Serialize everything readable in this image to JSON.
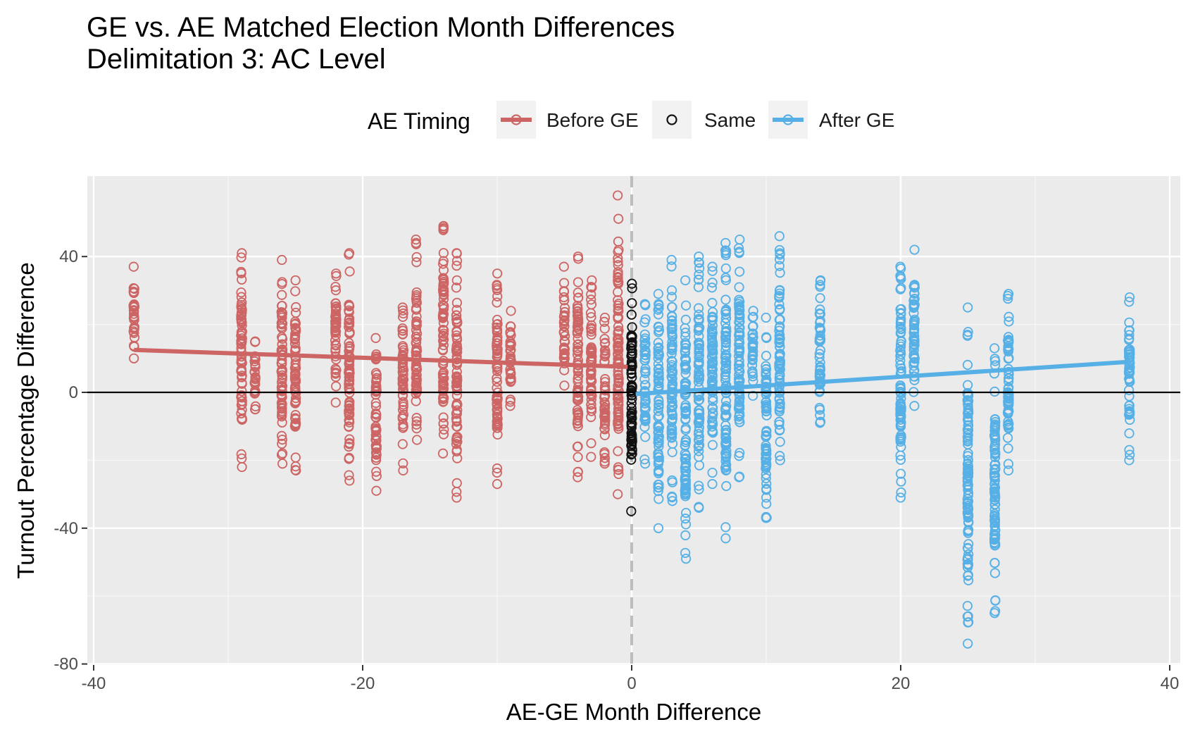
{
  "chart_data": {
    "type": "scatter",
    "title": "GE vs. AE Matched Election Month Differences",
    "subtitle": "Delimitation 3: AC Level",
    "xlabel": "AE-GE Month Difference",
    "ylabel": "Turnout Percentage Difference",
    "xlim": [
      -40,
      40
    ],
    "ylim": [
      -80,
      60
    ],
    "x_ticks": [
      -40,
      -20,
      0,
      20,
      40
    ],
    "x_tick_labels": [
      "-40",
      "-20",
      "0",
      "20",
      "40"
    ],
    "y_ticks": [
      -80,
      -40,
      0,
      40
    ],
    "y_tick_labels": [
      "-80",
      "-40",
      "0",
      "40"
    ],
    "grid": true,
    "legend": {
      "title": "AE Timing",
      "position": "top",
      "entries": [
        "Before GE",
        "Same",
        "After GE"
      ]
    },
    "colors": {
      "before": "#cd6564",
      "same": "#111111",
      "after": "#56b0e6",
      "panel": "#ebebeb",
      "grid": "#ffffff",
      "zero_line": "#000000",
      "vline": "#bdbdbd"
    },
    "reference_lines": {
      "horizontal_y": 0,
      "vertical_x_dashed": 0
    },
    "series": [
      {
        "name": "Before GE",
        "marker": "open-circle",
        "columns": [
          {
            "x": -37,
            "min": 10,
            "max": 37
          },
          {
            "x": -29,
            "min": -22,
            "max": 41
          },
          {
            "x": -28,
            "min": -5,
            "max": 15
          },
          {
            "x": -26,
            "min": -21,
            "max": 39
          },
          {
            "x": -25,
            "min": -23,
            "max": 33
          },
          {
            "x": -22,
            "min": -3,
            "max": 35
          },
          {
            "x": -21,
            "min": -26,
            "max": 41
          },
          {
            "x": -19,
            "min": -29,
            "max": 16
          },
          {
            "x": -17,
            "min": -23,
            "max": 25
          },
          {
            "x": -16,
            "min": -14,
            "max": 45
          },
          {
            "x": -14,
            "min": -18,
            "max": 49
          },
          {
            "x": -13,
            "min": -31,
            "max": 41
          },
          {
            "x": -10,
            "min": -27,
            "max": 35
          },
          {
            "x": -9,
            "min": -4,
            "max": 24
          },
          {
            "x": -5,
            "min": 2,
            "max": 37
          },
          {
            "x": -4,
            "min": -25,
            "max": 40
          },
          {
            "x": -3,
            "min": -19,
            "max": 33
          },
          {
            "x": -2,
            "min": -21,
            "max": 22
          },
          {
            "x": -1,
            "min": -30,
            "max": 58
          }
        ],
        "trend": {
          "x": [
            -37,
            -0.3
          ],
          "y": [
            12.5,
            7.5
          ]
        }
      },
      {
        "name": "Same",
        "marker": "open-circle",
        "columns": [
          {
            "x": 0,
            "min": -35,
            "max": 32
          }
        ]
      },
      {
        "name": "After GE",
        "marker": "open-circle",
        "columns": [
          {
            "x": 1,
            "min": -21,
            "max": 26
          },
          {
            "x": 2,
            "min": -40,
            "max": 29
          },
          {
            "x": 3,
            "min": -32,
            "max": 39
          },
          {
            "x": 4,
            "min": -49,
            "max": 33
          },
          {
            "x": 5,
            "min": -34,
            "max": 40
          },
          {
            "x": 6,
            "min": -27,
            "max": 37
          },
          {
            "x": 7,
            "min": -43,
            "max": 44
          },
          {
            "x": 8,
            "min": -25,
            "max": 45
          },
          {
            "x": 9,
            "min": -1,
            "max": 24
          },
          {
            "x": 10,
            "min": -37,
            "max": 22
          },
          {
            "x": 11,
            "min": -20,
            "max": 46
          },
          {
            "x": 14,
            "min": -9,
            "max": 33
          },
          {
            "x": 20,
            "min": -31,
            "max": 37
          },
          {
            "x": 21,
            "min": -4,
            "max": 42
          },
          {
            "x": 25,
            "min": -74,
            "max": 25
          },
          {
            "x": 27,
            "min": -65,
            "max": 13
          },
          {
            "x": 28,
            "min": -23,
            "max": 29
          },
          {
            "x": 37,
            "min": -20,
            "max": 28
          }
        ],
        "trend": {
          "x": [
            0.3,
            37
          ],
          "y": [
            -0.5,
            9
          ]
        }
      }
    ]
  }
}
